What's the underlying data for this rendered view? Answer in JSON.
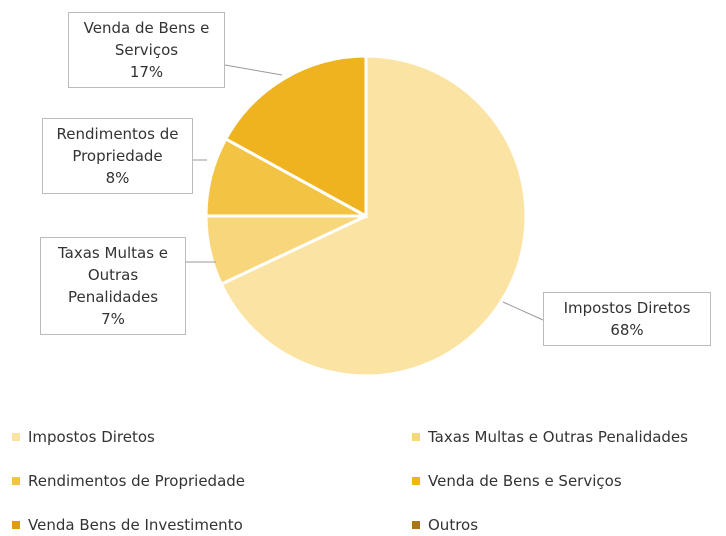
{
  "chart_data": {
    "type": "pie",
    "categories": [
      "Impostos Diretos",
      "Taxas Multas e Outras Penalidades",
      "Rendimentos de Propriedade",
      "Venda de Bens e Serviços",
      "Venda Bens de Investimento",
      "Outros"
    ],
    "values": [
      68,
      7,
      8,
      17,
      0,
      0
    ],
    "value_labels": [
      "68%",
      "7%",
      "8%",
      "17%",
      null,
      null
    ],
    "colors": [
      "#fbe4a3",
      "#f8d77c",
      "#f3c443",
      "#efb31f",
      "#e09d14",
      "#a8741c"
    ]
  }
}
